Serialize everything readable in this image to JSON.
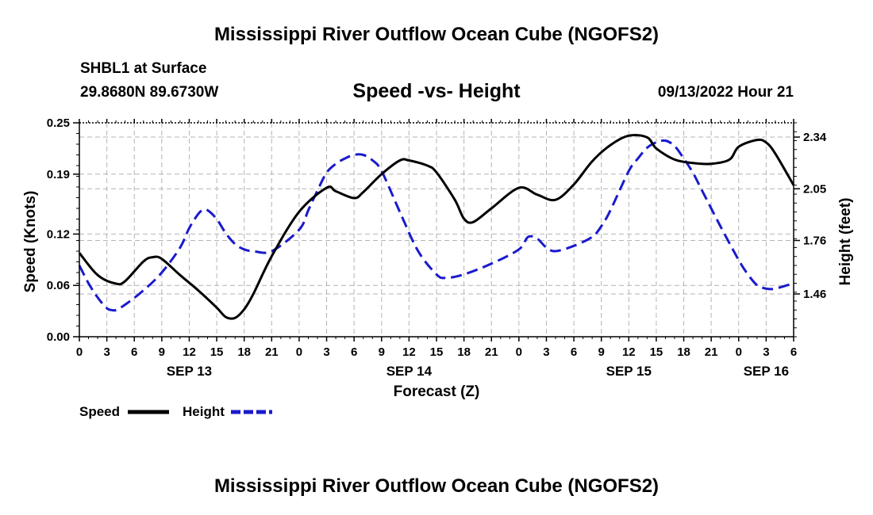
{
  "header": {
    "title": "Mississippi River Outflow Ocean Cube (NGOFS2)",
    "station": "SHBL1 at Surface",
    "coords": "29.8680N  89.6730W",
    "chart_title": "Speed -vs- Height",
    "timestamp": "09/13/2022 Hour 21"
  },
  "legend": {
    "speed_label": "Speed",
    "height_label": "Height"
  },
  "footer": {
    "title": "Mississippi River Outflow Ocean Cube (NGOFS2)"
  },
  "colors": {
    "speed": "#000000",
    "height": "#1a1acc",
    "grid": "#b4b4b4"
  },
  "chart_data": {
    "type": "line",
    "title": "Speed -vs- Height",
    "xlabel": "Forecast (Z)",
    "ylabel": "Speed (Knots)",
    "y2label": "Height (feet)",
    "xlim": [
      0,
      78
    ],
    "ylim": [
      0,
      0.25
    ],
    "y2lim": [
      1.22,
      2.42
    ],
    "x_ticks": [
      0,
      3,
      6,
      9,
      12,
      15,
      18,
      21,
      24,
      27,
      30,
      33,
      36,
      39,
      42,
      45,
      48,
      51,
      54,
      57,
      60,
      63,
      66,
      69,
      72,
      75,
      78
    ],
    "x_tick_labels": [
      "0",
      "3",
      "6",
      "9",
      "12",
      "15",
      "18",
      "21",
      "0",
      "3",
      "6",
      "9",
      "12",
      "15",
      "18",
      "21",
      "0",
      "3",
      "6",
      "9",
      "12",
      "15",
      "18",
      "21",
      "0",
      "3",
      "6"
    ],
    "date_labels": [
      {
        "x": 12,
        "label": "SEP 13"
      },
      {
        "x": 36,
        "label": "SEP 14"
      },
      {
        "x": 60,
        "label": "SEP 15"
      },
      {
        "x": 75,
        "label": "SEP 16"
      }
    ],
    "y_ticks": [
      0.0,
      0.06,
      0.12,
      0.19,
      0.25
    ],
    "y_tick_labels": [
      "0.00",
      "0.06",
      "0.12",
      "0.19",
      "0.25"
    ],
    "y2_ticks": [
      1.46,
      1.76,
      2.05,
      2.34
    ],
    "y2_tick_labels": [
      "1.46",
      "1.76",
      "2.05",
      "2.34"
    ],
    "series": [
      {
        "name": "Speed",
        "axis": "left",
        "style": "solid",
        "x": [
          0,
          2,
          4,
          5,
          7,
          8,
          9,
          11,
          13,
          15,
          16,
          17,
          18,
          19,
          21,
          24,
          27,
          28,
          30,
          31,
          33,
          35,
          36,
          38,
          39,
          41,
          42,
          43,
          45,
          48,
          50,
          52,
          54,
          56,
          58,
          60,
          62,
          63,
          65,
          67,
          69,
          71,
          72,
          74,
          75,
          76,
          78
        ],
        "y": [
          0.098,
          0.072,
          0.062,
          0.065,
          0.088,
          0.093,
          0.091,
          0.072,
          0.054,
          0.034,
          0.023,
          0.022,
          0.032,
          0.05,
          0.094,
          0.146,
          0.174,
          0.17,
          0.162,
          0.169,
          0.19,
          0.206,
          0.206,
          0.2,
          0.192,
          0.16,
          0.138,
          0.134,
          0.15,
          0.174,
          0.166,
          0.16,
          0.178,
          0.205,
          0.224,
          0.235,
          0.233,
          0.22,
          0.207,
          0.203,
          0.202,
          0.207,
          0.222,
          0.23,
          0.227,
          0.214,
          0.177
        ]
      },
      {
        "name": "Height",
        "axis": "right",
        "style": "dashed",
        "x": [
          0,
          1,
          2,
          3,
          3.5,
          4,
          5,
          7,
          9,
          11,
          12,
          13,
          13.5,
          14,
          15,
          16,
          17,
          18,
          19,
          21,
          24,
          25,
          26,
          27,
          28,
          29,
          30,
          31,
          32,
          33,
          35,
          37,
          39,
          40,
          42,
          45,
          48,
          49,
          50,
          51,
          52,
          54,
          56,
          57,
          58,
          60,
          61,
          62,
          63,
          64,
          65,
          66,
          67,
          68,
          70,
          72,
          73,
          74,
          75,
          76,
          78
        ],
        "y": [
          1.62,
          1.52,
          1.44,
          1.38,
          1.37,
          1.37,
          1.4,
          1.48,
          1.58,
          1.72,
          1.83,
          1.91,
          1.93,
          1.93,
          1.88,
          1.8,
          1.74,
          1.71,
          1.7,
          1.7,
          1.82,
          1.93,
          2.04,
          2.14,
          2.19,
          2.22,
          2.24,
          2.24,
          2.21,
          2.15,
          1.92,
          1.7,
          1.57,
          1.55,
          1.57,
          1.63,
          1.71,
          1.78,
          1.77,
          1.72,
          1.7,
          1.73,
          1.78,
          1.84,
          1.93,
          2.15,
          2.22,
          2.28,
          2.31,
          2.32,
          2.29,
          2.22,
          2.14,
          2.04,
          1.84,
          1.65,
          1.57,
          1.51,
          1.49,
          1.49,
          1.52
        ]
      }
    ]
  }
}
